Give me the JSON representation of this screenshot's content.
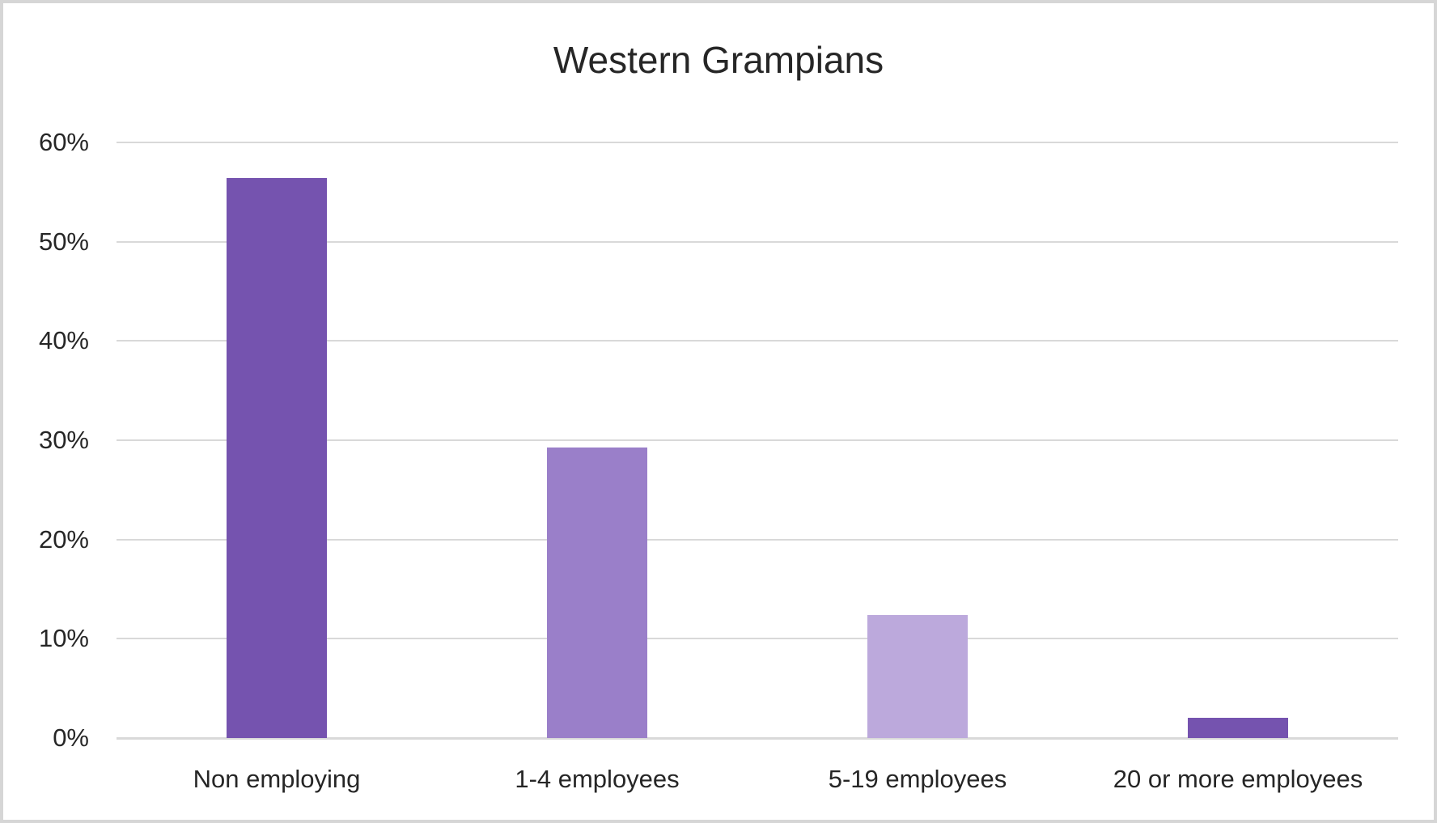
{
  "window": {
    "background_color": "#ffffff",
    "border_color": "#d6d6d6"
  },
  "chart_data": {
    "type": "bar",
    "title": "Western Grampians",
    "categories": [
      "Non employing",
      "1-4 employees",
      "5-19 employees",
      "20 or more employees"
    ],
    "values": [
      56.4,
      29.3,
      12.4,
      2.0
    ],
    "value_unit": "%",
    "bar_colors": [
      "#7553AF",
      "#9A7FC9",
      "#BCA9DC",
      "#7553AF"
    ],
    "y_axis": {
      "min": 0,
      "max": 60,
      "step": 10,
      "tick_labels": [
        "0%",
        "10%",
        "20%",
        "30%",
        "40%",
        "50%",
        "60%"
      ]
    },
    "xlabel": "",
    "ylabel": "",
    "legend_position": "none",
    "grid": true,
    "gridline_color": "#d9d9d9",
    "text_color": "#262626"
  }
}
